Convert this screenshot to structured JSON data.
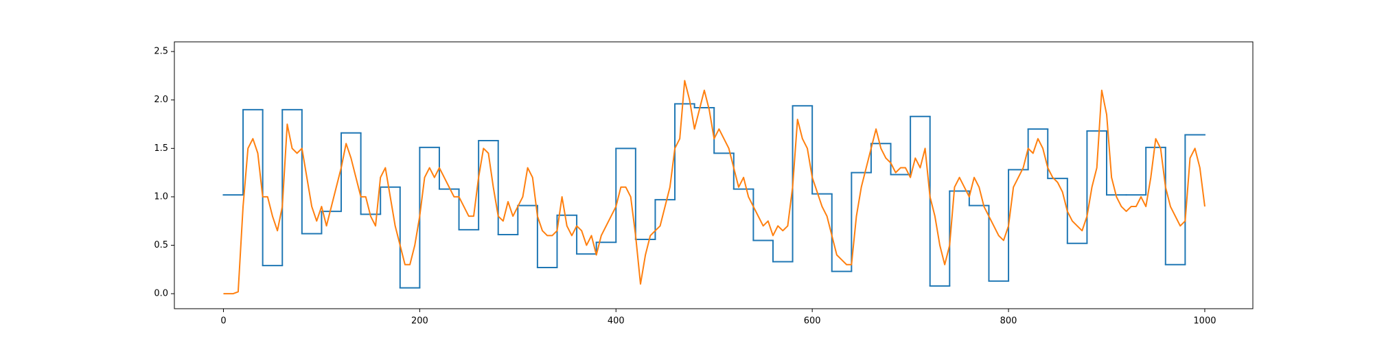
{
  "chart_data": {
    "type": "line",
    "xlim": [
      -50,
      1049
    ],
    "ylim": [
      -0.155,
      2.6
    ],
    "xticks": [
      0,
      200,
      400,
      600,
      800,
      1000
    ],
    "yticks": [
      {
        "value": 0,
        "label": "0.0"
      },
      0.5,
      {
        "value": 1,
        "label": "1.0"
      },
      1.5,
      {
        "value": 2,
        "label": "2.0"
      },
      2.5
    ],
    "series": [
      {
        "color": "#1f77b4",
        "bins": [
          0,
          20,
          40,
          60,
          80,
          100,
          120,
          140,
          160,
          180,
          200,
          220,
          240,
          260,
          280,
          300,
          320,
          340,
          360,
          380,
          400,
          420,
          440,
          460,
          480,
          500,
          520,
          540,
          560,
          580,
          600,
          620,
          640,
          660,
          680,
          700,
          720,
          740,
          760,
          780,
          800,
          820,
          840,
          860,
          880,
          900,
          920,
          940,
          960,
          980,
          1000
        ],
        "values": [
          1.02,
          1.9,
          0.29,
          1.9,
          0.62,
          0.85,
          1.66,
          0.82,
          1.1,
          0.06,
          1.51,
          1.08,
          0.66,
          1.58,
          0.61,
          0.91,
          0.27,
          0.81,
          0.41,
          0.53,
          1.5,
          0.56,
          0.97,
          1.96,
          1.92,
          1.45,
          1.08,
          0.55,
          0.33,
          1.94,
          1.03,
          0.23,
          1.25,
          1.55,
          1.23,
          1.83,
          0.08,
          1.06,
          0.91,
          0.13,
          1.28,
          1.7,
          1.19,
          0.52,
          1.68,
          1.02,
          1.02,
          1.51,
          0.3,
          1.64
        ]
      },
      {
        "color": "#ff7f0e",
        "x": [
          0,
          5,
          10,
          15,
          20,
          25,
          30,
          35,
          40,
          45,
          50,
          55,
          60,
          65,
          70,
          75,
          80,
          85,
          90,
          95,
          100,
          105,
          110,
          115,
          120,
          125,
          130,
          135,
          140,
          145,
          150,
          155,
          160,
          165,
          170,
          175,
          180,
          185,
          190,
          195,
          200,
          205,
          210,
          215,
          220,
          225,
          230,
          235,
          240,
          245,
          250,
          255,
          260,
          265,
          270,
          275,
          280,
          285,
          290,
          295,
          300,
          305,
          310,
          315,
          320,
          325,
          330,
          335,
          340,
          345,
          350,
          355,
          360,
          365,
          370,
          375,
          380,
          385,
          390,
          395,
          400,
          405,
          410,
          415,
          420,
          425,
          430,
          435,
          440,
          445,
          450,
          455,
          460,
          465,
          470,
          475,
          480,
          485,
          490,
          495,
          500,
          505,
          510,
          515,
          520,
          525,
          530,
          535,
          540,
          545,
          550,
          555,
          560,
          565,
          570,
          575,
          580,
          585,
          590,
          595,
          600,
          605,
          610,
          615,
          620,
          625,
          630,
          635,
          640,
          645,
          650,
          655,
          660,
          665,
          670,
          675,
          680,
          685,
          690,
          695,
          700,
          705,
          710,
          715,
          720,
          725,
          730,
          735,
          740,
          745,
          750,
          755,
          760,
          765,
          770,
          775,
          780,
          785,
          790,
          795,
          800,
          805,
          810,
          815,
          820,
          825,
          830,
          835,
          840,
          845,
          850,
          855,
          860,
          865,
          870,
          875,
          880,
          885,
          890,
          895,
          900,
          905,
          910,
          915,
          920,
          925,
          930,
          935,
          940,
          945,
          950,
          955,
          960,
          965,
          970,
          975,
          980,
          985,
          990,
          995,
          1000
        ],
        "values": [
          0,
          0,
          0,
          0.02,
          0.9,
          1.5,
          1.6,
          1.45,
          1.0,
          1.0,
          0.8,
          0.65,
          0.9,
          1.75,
          1.5,
          1.45,
          1.5,
          1.2,
          0.9,
          0.75,
          0.9,
          0.7,
          0.9,
          1.1,
          1.3,
          1.55,
          1.4,
          1.2,
          1.0,
          1.0,
          0.8,
          0.7,
          1.2,
          1.3,
          1.0,
          0.7,
          0.5,
          0.3,
          0.3,
          0.5,
          0.8,
          1.2,
          1.3,
          1.2,
          1.3,
          1.2,
          1.1,
          1.0,
          1.0,
          0.9,
          0.8,
          0.8,
          1.2,
          1.5,
          1.45,
          1.1,
          0.8,
          0.75,
          0.95,
          0.8,
          0.9,
          1.0,
          1.3,
          1.2,
          0.8,
          0.65,
          0.6,
          0.6,
          0.65,
          1.0,
          0.7,
          0.6,
          0.7,
          0.65,
          0.5,
          0.6,
          0.4,
          0.6,
          0.7,
          0.8,
          0.9,
          1.1,
          1.1,
          1.0,
          0.6,
          0.1,
          0.4,
          0.6,
          0.65,
          0.7,
          0.9,
          1.1,
          1.5,
          1.6,
          2.2,
          2.0,
          1.7,
          1.9,
          2.1,
          1.9,
          1.6,
          1.7,
          1.6,
          1.5,
          1.3,
          1.1,
          1.2,
          1.0,
          0.9,
          0.8,
          0.7,
          0.75,
          0.6,
          0.7,
          0.65,
          0.7,
          1.1,
          1.8,
          1.6,
          1.5,
          1.2,
          1.05,
          0.9,
          0.8,
          0.6,
          0.4,
          0.35,
          0.3,
          0.3,
          0.8,
          1.1,
          1.3,
          1.5,
          1.7,
          1.5,
          1.4,
          1.35,
          1.25,
          1.3,
          1.3,
          1.2,
          1.4,
          1.3,
          1.5,
          1.0,
          0.8,
          0.5,
          0.3,
          0.5,
          1.1,
          1.2,
          1.1,
          1.0,
          1.2,
          1.1,
          0.9,
          0.8,
          0.7,
          0.6,
          0.55,
          0.7,
          1.1,
          1.2,
          1.3,
          1.5,
          1.45,
          1.6,
          1.5,
          1.3,
          1.2,
          1.15,
          1.05,
          0.85,
          0.75,
          0.7,
          0.65,
          0.8,
          1.1,
          1.3,
          2.1,
          1.85,
          1.2,
          1.0,
          0.9,
          0.85,
          0.9,
          0.9,
          1.0,
          0.9,
          1.2,
          1.6,
          1.5,
          1.1,
          0.9,
          0.8,
          0.7,
          0.75,
          1.4,
          1.5,
          1.3,
          0.9
        ]
      }
    ]
  }
}
